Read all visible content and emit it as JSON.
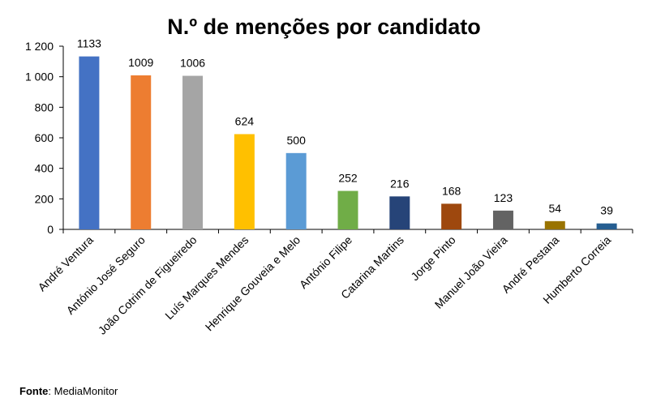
{
  "chart_data": {
    "type": "bar",
    "title": "N.º de menções por candidato",
    "xlabel": "",
    "ylabel": "",
    "ylim": [
      0,
      1200
    ],
    "yticks": [
      0,
      200,
      400,
      600,
      800,
      1000,
      1200
    ],
    "ytick_labels": [
      "0",
      "200",
      "400",
      "600",
      "800",
      "1 000",
      "1 200"
    ],
    "grid": false,
    "categories": [
      "André Ventura",
      "António José Seguro",
      "João Cotrim de Figueiredo",
      "Luís Marques Mendes",
      "Henrique Gouveia e Melo",
      "António Filipe",
      "Catarina Martins",
      "Jorge Pinto",
      "Manuel João Vieira",
      "André Pestana",
      "Humberto Correia"
    ],
    "values": [
      1133,
      1009,
      1006,
      624,
      500,
      252,
      216,
      168,
      123,
      54,
      39
    ],
    "colors": [
      "#4472C4",
      "#ED7D31",
      "#A5A5A5",
      "#FFC000",
      "#5B9BD5",
      "#70AD47",
      "#264478",
      "#9E480E",
      "#636363",
      "#997300",
      "#255E91"
    ]
  },
  "source": {
    "label": "Fonte",
    "text": "MediaMonitor"
  }
}
